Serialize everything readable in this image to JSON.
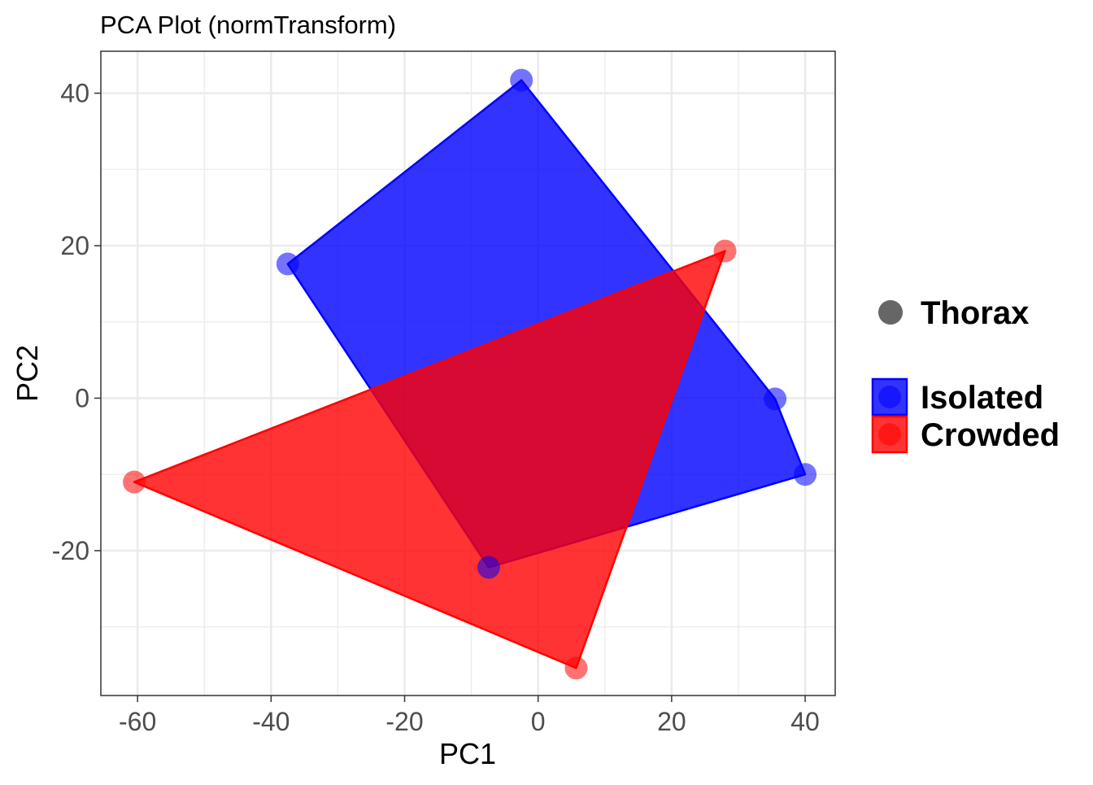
{
  "chart_data": {
    "type": "scatter",
    "title": "PCA Plot (normTransform)",
    "xlabel": "PC1",
    "ylabel": "PC2",
    "xlim": [
      -65.5,
      44.5
    ],
    "ylim": [
      -39,
      45.5
    ],
    "x_ticks": [
      -60,
      -40,
      -20,
      0,
      20,
      40
    ],
    "y_ticks": [
      -20,
      0,
      20,
      40
    ],
    "x_tick_labels": [
      "-60",
      "-40",
      "-20",
      "0",
      "20",
      "40"
    ],
    "y_tick_labels": [
      "-20",
      "0",
      "20",
      "40"
    ],
    "grid": true,
    "legend_position": "right",
    "shape_legend": {
      "label": "Thorax",
      "color": "#666666"
    },
    "series": [
      {
        "name": "Isolated",
        "color": "#0000ff",
        "points": [
          {
            "x": -2.5,
            "y": 41.7
          },
          {
            "x": -37.5,
            "y": 17.6
          },
          {
            "x": 35.5,
            "y": -0.1
          },
          {
            "x": 40.0,
            "y": -10.0
          },
          {
            "x": -7.4,
            "y": -22.2
          }
        ],
        "hull": [
          {
            "x": -2.5,
            "y": 41.7
          },
          {
            "x": 35.5,
            "y": -0.1
          },
          {
            "x": 40.0,
            "y": -10.0
          },
          {
            "x": -7.4,
            "y": -22.2
          },
          {
            "x": -37.5,
            "y": 17.6
          }
        ]
      },
      {
        "name": "Crowded",
        "color": "#ff0000",
        "points": [
          {
            "x": 28.0,
            "y": 19.3
          },
          {
            "x": -60.5,
            "y": -11.0
          },
          {
            "x": 5.7,
            "y": -35.4
          }
        ],
        "hull": [
          {
            "x": 28.0,
            "y": 19.3
          },
          {
            "x": 5.7,
            "y": -35.4
          },
          {
            "x": -60.5,
            "y": -11.0
          }
        ]
      }
    ]
  }
}
